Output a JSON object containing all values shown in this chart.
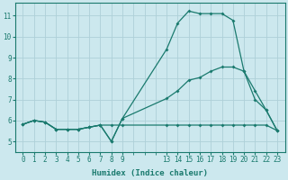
{
  "xlabel": "Humidex (Indice chaleur)",
  "bg_color": "#cce8ee",
  "grid_color": "#aed0d8",
  "line_color": "#1a7a6e",
  "xlim": [
    -0.7,
    23.7
  ],
  "ylim": [
    4.5,
    11.6
  ],
  "xticks": [
    0,
    1,
    2,
    3,
    4,
    5,
    6,
    7,
    8,
    9,
    13,
    14,
    15,
    16,
    17,
    18,
    19,
    20,
    21,
    22,
    23
  ],
  "yticks": [
    5,
    6,
    7,
    8,
    9,
    10,
    11
  ],
  "line1_x": [
    0,
    1,
    2,
    3,
    4,
    5,
    6,
    7,
    8,
    9,
    13,
    14,
    15,
    16,
    17,
    18,
    19,
    20,
    21,
    22,
    23
  ],
  "line1_y": [
    5.82,
    6.0,
    5.92,
    5.58,
    5.58,
    5.58,
    5.68,
    5.78,
    5.0,
    6.1,
    9.4,
    10.65,
    11.22,
    11.1,
    11.1,
    11.1,
    10.78,
    8.35,
    7.0,
    6.5,
    5.52
  ],
  "line2_x": [
    0,
    1,
    2,
    3,
    4,
    5,
    6,
    7,
    8,
    9,
    13,
    14,
    15,
    16,
    17,
    18,
    19,
    20,
    21,
    22,
    23
  ],
  "line2_y": [
    5.82,
    6.0,
    5.92,
    5.58,
    5.58,
    5.58,
    5.68,
    5.78,
    5.78,
    5.78,
    5.78,
    5.78,
    5.78,
    5.78,
    5.78,
    5.78,
    5.78,
    5.78,
    5.78,
    5.78,
    5.52
  ],
  "line3_x": [
    0,
    1,
    2,
    3,
    4,
    5,
    6,
    7,
    8,
    9,
    13,
    14,
    15,
    16,
    17,
    18,
    19,
    20,
    21,
    22,
    23
  ],
  "line3_y": [
    5.82,
    6.0,
    5.92,
    5.58,
    5.58,
    5.58,
    5.68,
    5.78,
    5.0,
    6.1,
    7.05,
    7.42,
    7.92,
    8.05,
    8.35,
    8.55,
    8.55,
    8.35,
    7.42,
    6.5,
    5.52
  ]
}
